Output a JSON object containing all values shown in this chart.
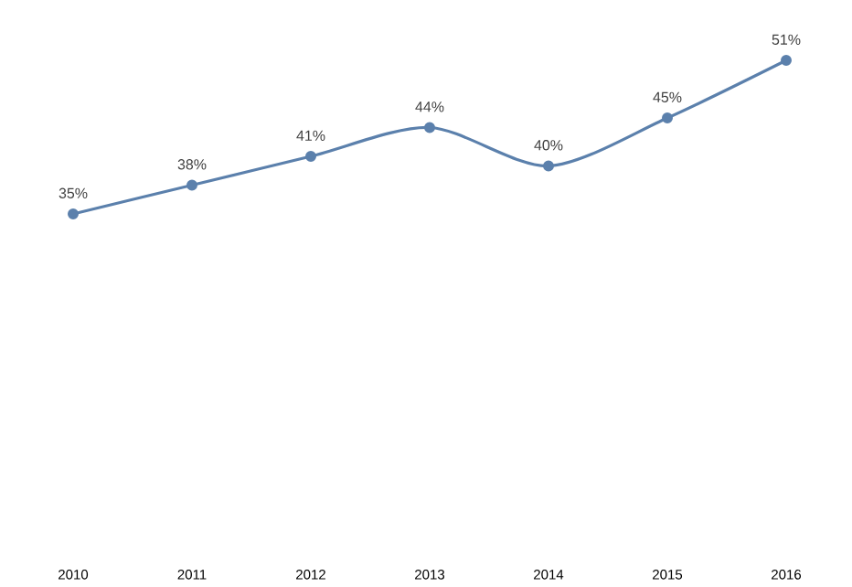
{
  "chart_data": {
    "type": "line",
    "categories": [
      "2010",
      "2011",
      "2012",
      "2013",
      "2014",
      "2015",
      "2016"
    ],
    "series": [
      {
        "color": "#5b80ac",
        "values": [
          35,
          38,
          41,
          44,
          40,
          45,
          51
        ],
        "value_labels": [
          "35%",
          "38%",
          "41%",
          "44%",
          "40%",
          "45%",
          "51%"
        ]
      }
    ],
    "marker": "circle",
    "line_style": "solid"
  }
}
